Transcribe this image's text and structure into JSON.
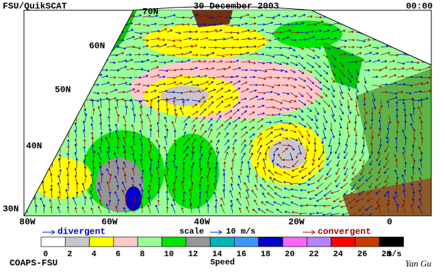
{
  "header": {
    "left": "FSU/QuikSCAT",
    "center": "30 December 2003",
    "right": "00:00"
  },
  "lat_labels": [
    "70N",
    "60N",
    "50N",
    "40N",
    "30N"
  ],
  "lon_labels": [
    "80W",
    "60W",
    "40W",
    "20W",
    "0"
  ],
  "legend": {
    "divergent": "divergent",
    "scale": "scale",
    "scale_value": "10 m/s",
    "convergent": "convergent"
  },
  "colorbar": {
    "ticks": [
      "0",
      "2",
      "4",
      "6",
      "8",
      "10",
      "12",
      "14",
      "16",
      "18",
      "20",
      "22",
      "24",
      "26",
      "28"
    ],
    "colors": [
      "#ffffff",
      "#c8c8c8",
      "#ffff00",
      "#ffc8c8",
      "#96ff96",
      "#00e600",
      "#969696",
      "#00b4b4",
      "#3c96ff",
      "#0000c8",
      "#ff64ff",
      "#b482ff",
      "#ff0000",
      "#c83c00",
      "#000000"
    ],
    "unit": "m/s",
    "label": "Speed"
  },
  "footer": {
    "left": "COAPS-FSU",
    "signature": "Yan Gu"
  }
}
